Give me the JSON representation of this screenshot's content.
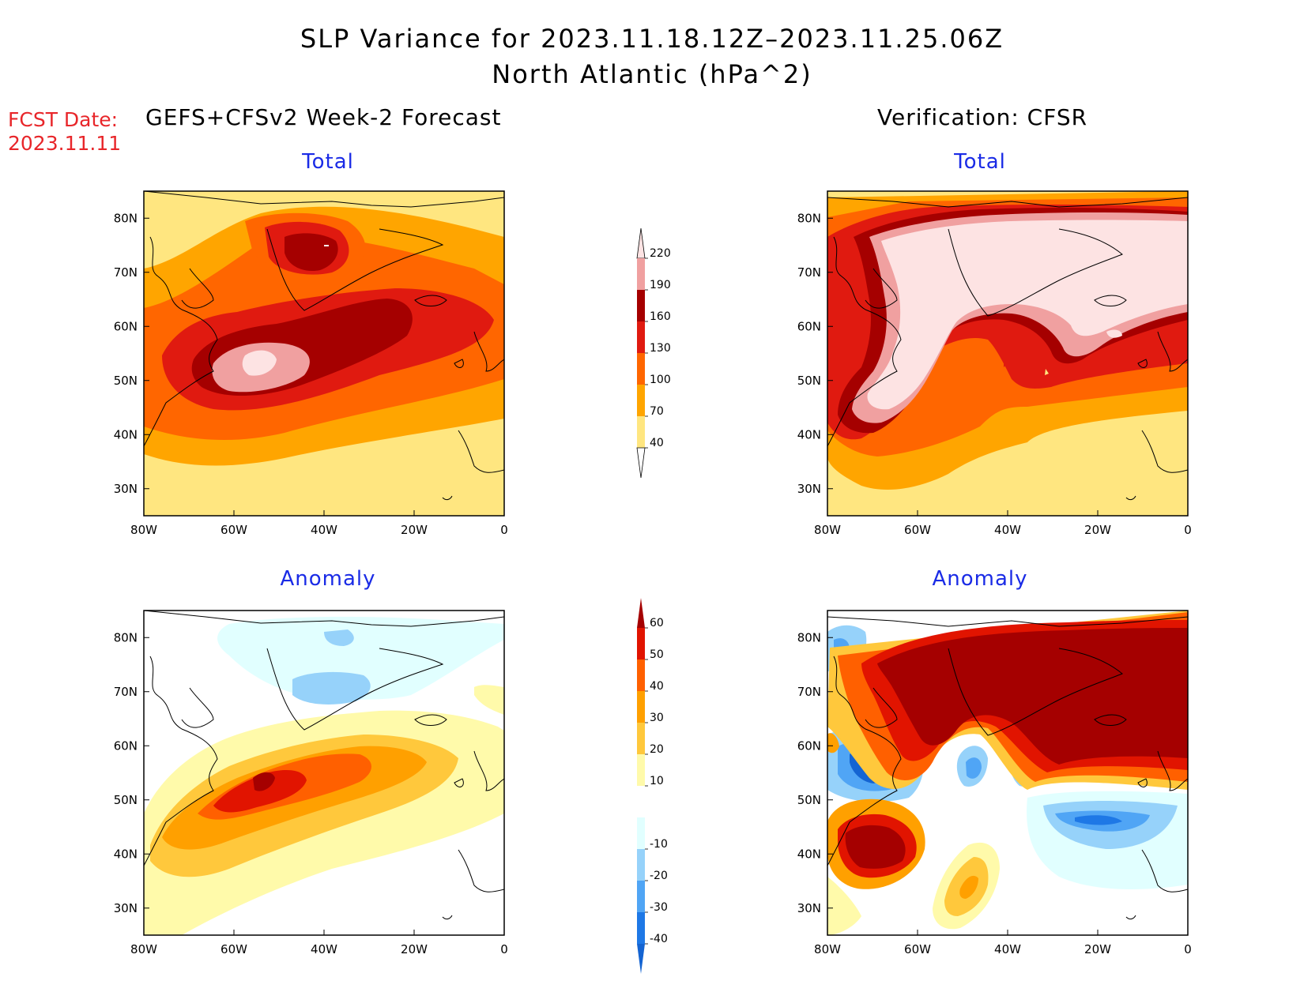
{
  "title": {
    "line1": "SLP Variance for 2023.11.18.12Z–2023.11.25.06Z",
    "line2": "North Atlantic (hPa^2)"
  },
  "fcst": {
    "label": "FCST Date:",
    "date": "2023.11.11"
  },
  "columns": {
    "left": "GEFS+CFSv2 Week-2 Forecast",
    "right": "Verification: CFSR"
  },
  "panels": {
    "fc_total": "Total",
    "obs_total": "Total",
    "fc_anom": "Anomaly",
    "obs_anom": "Anomaly"
  },
  "lat_labels": [
    "30N",
    "40N",
    "50N",
    "60N",
    "70N",
    "80N"
  ],
  "lon_labels": [
    "80W",
    "60W",
    "40W",
    "20W",
    "0"
  ],
  "colorbar_total": {
    "labels": [
      "40",
      "70",
      "100",
      "130",
      "160",
      "190",
      "220"
    ],
    "colors": [
      "#ffffff",
      "#ffe680",
      "#ffa500",
      "#ff6600",
      "#e01a10",
      "#a50000",
      "#f0a0a0",
      "#fde3e3"
    ]
  },
  "colorbar_anom": {
    "labels": [
      "-40",
      "-30",
      "-20",
      "-10",
      "10",
      "20",
      "30",
      "40",
      "50",
      "60"
    ],
    "colors": [
      "#1464d2",
      "#1e78e6",
      "#50a5f5",
      "#96d2fa",
      "#e1ffff",
      "#ffffff",
      "#fffaaa",
      "#ffc83c",
      "#ffa000",
      "#ff6000",
      "#e11400",
      "#a50000"
    ]
  }
}
